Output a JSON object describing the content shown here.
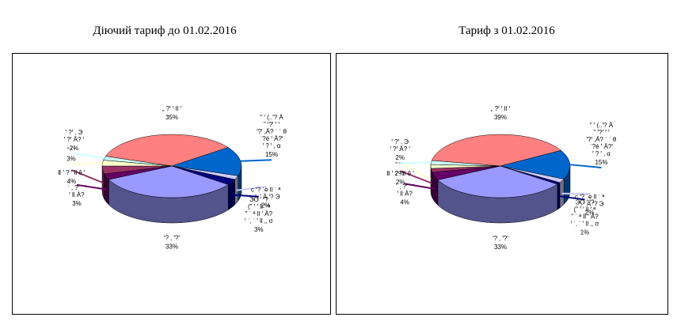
{
  "chart_data": [
    {
      "type": "pie",
      "title": "Діючий тариф до 01.02.2016",
      "categories": [
        "„ ?ꞌ ꞌ ll ꞌ",
        "\" ꞌ (..ꞌ? À\n\" ꞌ?ꞌ ꞌ ꞌ\nꞌ?ꞌ ‚Ä? ˈ ˈ θ\nˈ?é ꞌ Ä?ꞌ\nꞌ ? ꞌ ‚ α",
        "c ꞌ? ˈè ll ˈ ª\n. ꞌ, ꞌ À ꞌ? Э",
        "ЭО ꞌ ꞌ?\n(\" ꞌ ꞌ ll ꞌ ª\n\" ˈ ª ll ꞌ À?\nꞌ ˈ‚ ˈ ꞌ ll ‚‚ σ",
        "ꞌ? ‚ ꞌ?ꞌ",
        "ˈ ‚ ?ꞌ ˈ ꞌ\nꞌ ll À?",
        "Ⅱ ꞌ ? ꞌ ll ê ꞌ",
        "\" ꞌ ꞌ",
        "ꞌ ?ꞌ ‚ Э\nꞌ ?ꞌ Ä? ꞌ"
      ],
      "values": [
        35,
        15,
        2,
        3,
        33,
        3,
        4,
        3,
        2
      ],
      "value_labels": [
        "35%",
        "15%",
        "2%",
        "3%",
        "33%",
        "3%",
        "4%",
        "3%",
        "2%"
      ],
      "colors": [
        "#ff8080",
        "#0066cc",
        "#ccccff",
        "#000080",
        "#9999ff",
        "#660066",
        "#993366",
        "#ffffcc",
        "#ccffff"
      ]
    },
    {
      "type": "pie",
      "title": "Тариф з 01.02.2016",
      "categories": [
        "„ ?ꞌ ꞌ ll ꞌ",
        "\" ꞌ (..ꞌ? À\n\" ꞌ?ꞌ ꞌ ꞌ\nꞌ?ꞌ ‚Ä? ˈ ˈ θ\nˈ?é ꞌ Ä?ꞌ\nꞌ ? ꞌ ‚ α",
        "c ꞌ? ˈè ll ˈ ª\n. ꞌ, ꞌ À ꞌ? Э",
        "ЭО ꞌ ꞌ?\n(\" ꞌ ꞌ ll ꞌ ª\n\" ˈ ª ll ꞌ À?\nꞌ ˈ‚ ˈ ꞌ ll ‚‚ σ",
        "ꞌ? ‚ ꞌ?ꞌ",
        "ˈ ‚ ?ꞌ ˈ ꞌ\nꞌ ll À?",
        "Ⅱ ꞌ ? ꞌ ll ê ꞌ",
        "\" ꞌ ꞌ",
        "ꞌ ?ꞌ ‚ Э\nꞌ ?ꞌ Ä? ꞌ"
      ],
      "values": [
        39,
        15,
        2,
        1,
        33,
        4,
        2,
        2,
        2
      ],
      "value_labels": [
        "39%",
        "15%",
        "2%",
        "1%",
        "33%",
        "4%",
        "2%",
        "2%",
        "2%"
      ],
      "colors": [
        "#ff8080",
        "#0066cc",
        "#ccccff",
        "#000080",
        "#9999ff",
        "#660066",
        "#993366",
        "#ffffcc",
        "#ccffff"
      ]
    }
  ]
}
